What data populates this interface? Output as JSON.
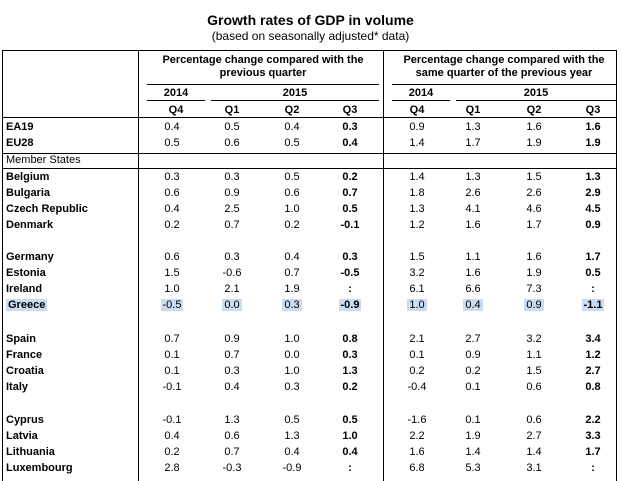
{
  "title": "Growth rates of GDP in volume",
  "subtitle": "(based on seasonally adjusted* data)",
  "header": {
    "group_qoq": "Percentage change compared with the previous quarter",
    "group_yoy": "Percentage change compared with the same quarter of the previous year",
    "years": [
      "2014",
      "2015",
      "2014",
      "2015"
    ],
    "quarters": [
      "Q4",
      "Q1",
      "Q2",
      "Q3",
      "Q4",
      "Q1",
      "Q2",
      "Q3"
    ]
  },
  "section_label": "Member States",
  "highlight_color": "#c9dcf2",
  "rows": [
    {
      "name": "EA19",
      "values": [
        "0.4",
        "0.5",
        "0.4",
        "0.3",
        "0.9",
        "1.3",
        "1.6",
        "1.6"
      ]
    },
    {
      "name": "EU28",
      "values": [
        "0.5",
        "0.6",
        "0.5",
        "0.4",
        "1.4",
        "1.7",
        "1.9",
        "1.9"
      ]
    },
    {
      "name": "Belgium",
      "values": [
        "0.3",
        "0.3",
        "0.5",
        "0.2",
        "1.4",
        "1.3",
        "1.5",
        "1.3"
      ]
    },
    {
      "name": "Bulgaria",
      "values": [
        "0.6",
        "0.9",
        "0.6",
        "0.7",
        "1.8",
        "2.6",
        "2.6",
        "2.9"
      ]
    },
    {
      "name": "Czech Republic",
      "values": [
        "0.4",
        "2.5",
        "1.0",
        "0.5",
        "1.3",
        "4.1",
        "4.6",
        "4.5"
      ]
    },
    {
      "name": "Denmark",
      "values": [
        "0.2",
        "0.7",
        "0.2",
        "-0.1",
        "1.2",
        "1.6",
        "1.7",
        "0.9"
      ]
    },
    {
      "name": "Germany",
      "values": [
        "0.6",
        "0.3",
        "0.4",
        "0.3",
        "1.5",
        "1.1",
        "1.6",
        "1.7"
      ]
    },
    {
      "name": "Estonia",
      "values": [
        "1.5",
        "-0.6",
        "0.7",
        "-0.5",
        "3.2",
        "1.6",
        "1.9",
        "0.5"
      ]
    },
    {
      "name": "Ireland",
      "values": [
        "1.0",
        "2.1",
        "1.9",
        ":",
        "6.1",
        "6.6",
        "7.3",
        ":"
      ]
    },
    {
      "name": "Greece",
      "values": [
        "-0.5",
        "0.0",
        "0.3",
        "-0.9",
        "1.0",
        "0.4",
        "0.9",
        "-1.1"
      ]
    },
    {
      "name": "Spain",
      "values": [
        "0.7",
        "0.9",
        "1.0",
        "0.8",
        "2.1",
        "2.7",
        "3.2",
        "3.4"
      ]
    },
    {
      "name": "France",
      "values": [
        "0.1",
        "0.7",
        "0.0",
        "0.3",
        "0.1",
        "0.9",
        "1.1",
        "1.2"
      ]
    },
    {
      "name": "Croatia",
      "values": [
        "0.1",
        "0.3",
        "1.0",
        "1.3",
        "0.2",
        "0.2",
        "1.5",
        "2.7"
      ]
    },
    {
      "name": "Italy",
      "values": [
        "-0.1",
        "0.4",
        "0.3",
        "0.2",
        "-0.4",
        "0.1",
        "0.6",
        "0.8"
      ]
    },
    {
      "name": "Cyprus",
      "values": [
        "-0.1",
        "1.3",
        "0.5",
        "0.5",
        "-1.6",
        "0.1",
        "0.6",
        "2.2"
      ]
    },
    {
      "name": "Latvia",
      "values": [
        "0.4",
        "0.6",
        "1.3",
        "1.0",
        "2.2",
        "1.9",
        "2.7",
        "3.3"
      ]
    },
    {
      "name": "Lithuania",
      "values": [
        "0.2",
        "0.7",
        "0.4",
        "0.4",
        "1.6",
        "1.4",
        "1.4",
        "1.7"
      ]
    },
    {
      "name": "Luxembourg",
      "values": [
        "2.8",
        "-0.3",
        "-0.9",
        ":",
        "6.8",
        "5.3",
        "3.1",
        ":"
      ]
    }
  ]
}
